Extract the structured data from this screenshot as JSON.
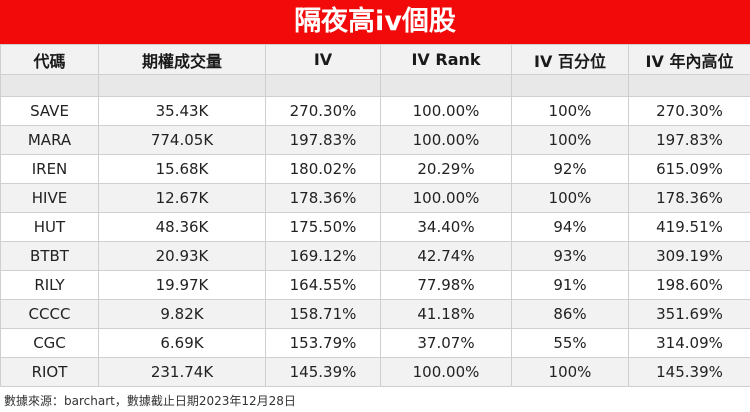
{
  "title": "隔夜高iv個股",
  "headers": [
    "代碼",
    "期權成交量",
    "IV",
    "IV Rank",
    "IV 百分位",
    "IV 年內高位"
  ],
  "rows": [
    [
      "SAVE",
      "35.43K",
      "270.30%",
      "100.00%",
      "100%",
      "270.30%"
    ],
    [
      "MARA",
      "774.05K",
      "197.83%",
      "100.00%",
      "100%",
      "197.83%"
    ],
    [
      "IREN",
      "15.68K",
      "180.02%",
      "20.29%",
      "92%",
      "615.09%"
    ],
    [
      "HIVE",
      "12.67K",
      "178.36%",
      "100.00%",
      "100%",
      "178.36%"
    ],
    [
      "HUT",
      "48.36K",
      "175.50%",
      "34.40%",
      "94%",
      "419.51%"
    ],
    [
      "BTBT",
      "20.93K",
      "169.12%",
      "42.74%",
      "93%",
      "309.19%"
    ],
    [
      "RILY",
      "19.97K",
      "164.55%",
      "77.98%",
      "91%",
      "198.60%"
    ],
    [
      "CCCC",
      "9.82K",
      "158.71%",
      "41.18%",
      "86%",
      "351.69%"
    ],
    [
      "CGC",
      "6.69K",
      "153.79%",
      "37.07%",
      "55%",
      "314.09%"
    ],
    [
      "RIOT",
      "231.74K",
      "145.39%",
      "100.00%",
      "100%",
      "145.39%"
    ]
  ],
  "footer": "數據來源：barchart，數據截止日期2023年12月28日",
  "colors": {
    "title_bg": "#f20a0a",
    "title_text": "#ffffff"
  }
}
